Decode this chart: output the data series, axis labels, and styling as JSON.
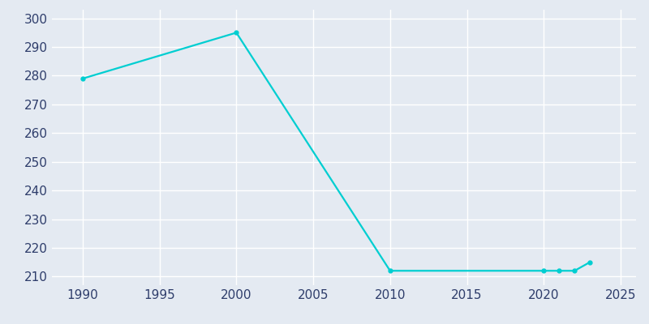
{
  "years": [
    1990,
    2000,
    2010,
    2020,
    2021,
    2022,
    2023
  ],
  "population": [
    279,
    295,
    212,
    212,
    212,
    212,
    215
  ],
  "line_color": "#00CED1",
  "marker": "o",
  "marker_size": 3.5,
  "background_color": "#E4EAF2",
  "grid_color": "#FFFFFF",
  "xlim": [
    1988,
    2026
  ],
  "ylim": [
    207,
    303
  ],
  "xticks": [
    1990,
    1995,
    2000,
    2005,
    2010,
    2015,
    2020,
    2025
  ],
  "yticks": [
    210,
    220,
    230,
    240,
    250,
    260,
    270,
    280,
    290,
    300
  ],
  "tick_color": "#2E3D6B",
  "tick_labelsize": 11,
  "linewidth": 1.6
}
